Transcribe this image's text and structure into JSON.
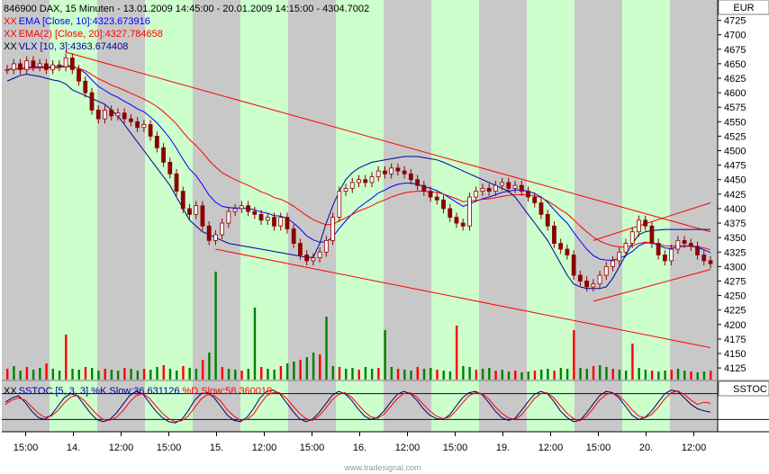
{
  "header": {
    "line1": "846900  DAX, 15 Minuten - 13.01.2009 14:45:00 - 20.01.2009 14:15:00 - 4304.7002",
    "line2": "EMA [Close, 10]:4323.673916",
    "line3": "EMA(2) [Close, 20]:4327.784658",
    "line4": "VLX [10, 3]:4363.674408",
    "currency": "EUR"
  },
  "lower_panel": {
    "legend_prefix": "SSTOC [5, 3, 3] %K Slow:36.631126",
    "legend_d": " %D Slow:58.360019",
    "label": "SSTOC"
  },
  "watermark": "www.tradesignal.com",
  "colors": {
    "gray_band": "#c8c8c8",
    "green_band": "#ccffcc",
    "candle": "#8b0000",
    "ema10": "#0000ff",
    "ema20": "#ff0000",
    "vlx": "#000099",
    "channel": "#ff0000",
    "volume_up": "#008000",
    "volume_down": "#ff0000",
    "stoch_k": "#000066",
    "stoch_d": "#ff0000",
    "stoch_ref": "#000080"
  },
  "chart_data": [
    {
      "type": "line",
      "title": "846900 DAX, 15 Minuten",
      "y_range": [
        4105,
        4760
      ],
      "y_ticks": [
        4725,
        4700,
        4675,
        4650,
        4625,
        4600,
        4575,
        4550,
        4525,
        4500,
        4475,
        4450,
        4425,
        4400,
        4375,
        4350,
        4325,
        4300,
        4275,
        4250,
        4225,
        4200,
        4175,
        4150,
        4125
      ],
      "x_tick_labels": [
        "15:00",
        "14.",
        "12:00",
        "15:00",
        "15.",
        "12:00",
        "15:00",
        "16.",
        "12:00",
        "15:00",
        "19.",
        "12:00",
        "15:00",
        "20.",
        "12:00"
      ],
      "bands": [
        "gray",
        "green",
        "gray",
        "green",
        "gray",
        "green",
        "gray",
        "green",
        "gray",
        "green",
        "gray",
        "green",
        "gray",
        "green",
        "gray"
      ],
      "series": [
        {
          "name": "DAX Close",
          "values": [
            4640,
            4650,
            4640,
            4655,
            4645,
            4650,
            4640,
            4648,
            4645,
            4660,
            4640,
            4620,
            4600,
            4570,
            4555,
            4570,
            4560,
            4565,
            4555,
            4550,
            4540,
            4545,
            4525,
            4505,
            4480,
            4460,
            4430,
            4400,
            4390,
            4405,
            4370,
            4345,
            4355,
            4375,
            4395,
            4400,
            4405,
            4395,
            4390,
            4380,
            4385,
            4370,
            4385,
            4365,
            4340,
            4320,
            4310,
            4315,
            4325,
            4345,
            4385,
            4430,
            4435,
            4445,
            4450,
            4445,
            4455,
            4465,
            4460,
            4470,
            4465,
            4460,
            4450,
            4440,
            4430,
            4420,
            4415,
            4400,
            4385,
            4375,
            4370,
            4420,
            4430,
            4435,
            4430,
            4440,
            4445,
            4435,
            4440,
            4430,
            4420,
            4410,
            4390,
            4370,
            4340,
            4330,
            4320,
            4285,
            4275,
            4265,
            4270,
            4285,
            4300,
            4310,
            4325,
            4340,
            4360,
            4380,
            4370,
            4340,
            4320,
            4310,
            4330,
            4345,
            4340,
            4335,
            4320,
            4310,
            4305
          ]
        },
        {
          "name": "EMA [Close, 10]",
          "values": [
            4640,
            4642,
            4641,
            4644,
            4644,
            4645,
            4644,
            4645,
            4645,
            4647,
            4646,
            4641,
            4634,
            4622,
            4611,
            4604,
            4597,
            4592,
            4585,
            4579,
            4572,
            4567,
            4558,
            4548,
            4535,
            4521,
            4504,
            4485,
            4468,
            4457,
            4441,
            4423,
            4411,
            4404,
            4402,
            4401,
            4401,
            4400,
            4398,
            4394,
            4392,
            4388,
            4387,
            4383,
            4375,
            4365,
            4353,
            4346,
            4342,
            4343,
            4351,
            4366,
            4379,
            4391,
            4402,
            4410,
            4418,
            4427,
            4432,
            4438,
            4442,
            4444,
            4444,
            4442,
            4438,
            4435,
            4431,
            4425,
            4418,
            4411,
            4404,
            4408,
            4413,
            4417,
            4420,
            4424,
            4428,
            4430,
            4432,
            4432,
            4430,
            4426,
            4420,
            4411,
            4398,
            4386,
            4375,
            4359,
            4344,
            4330,
            4319,
            4313,
            4311,
            4311,
            4314,
            4319,
            4326,
            4336,
            4341,
            4341,
            4337,
            4332,
            4331,
            4334,
            4335,
            4335,
            4333,
            4329,
            4324
          ]
        },
        {
          "name": "EMA(2) [Close, 20]",
          "values": [
            4640,
            4641,
            4641,
            4642,
            4642,
            4643,
            4643,
            4643,
            4643,
            4645,
            4644,
            4642,
            4638,
            4631,
            4624,
            4619,
            4613,
            4609,
            4604,
            4599,
            4594,
            4589,
            4583,
            4576,
            4567,
            4557,
            4546,
            4532,
            4519,
            4509,
            4497,
            4483,
            4472,
            4462,
            4456,
            4450,
            4445,
            4440,
            4435,
            4429,
            4425,
            4419,
            4416,
            4411,
            4404,
            4396,
            4388,
            4381,
            4376,
            4372,
            4373,
            4379,
            4384,
            4390,
            4396,
            4400,
            4405,
            4411,
            4415,
            4420,
            4424,
            4427,
            4429,
            4430,
            4430,
            4429,
            4428,
            4425,
            4421,
            4417,
            4412,
            4413,
            4414,
            4416,
            4417,
            4419,
            4421,
            4423,
            4424,
            4424,
            4424,
            4422,
            4419,
            4413,
            4406,
            4398,
            4391,
            4381,
            4370,
            4360,
            4351,
            4344,
            4339,
            4336,
            4334,
            4334,
            4336,
            4340,
            4342,
            4341,
            4339,
            4336,
            4335,
            4336,
            4336,
            4336,
            4334,
            4332,
            4329
          ]
        },
        {
          "name": "VLX [10, 3]",
          "values": [
            4620,
            4625,
            4630,
            4632,
            4630,
            4628,
            4625,
            4622,
            4620,
            4615,
            4605,
            4600,
            4595,
            4590,
            4585,
            4580,
            4570,
            4560,
            4545,
            4530,
            4515,
            4500,
            4485,
            4470,
            4455,
            4440,
            4420,
            4400,
            4380,
            4370,
            4360,
            4355,
            4350,
            4345,
            4340,
            4338,
            4336,
            4334,
            4332,
            4330,
            4328,
            4326,
            4324,
            4322,
            4320,
            4318,
            4316,
            4316,
            4340,
            4375,
            4405,
            4430,
            4450,
            4462,
            4470,
            4475,
            4480,
            4482,
            4484,
            4486,
            4488,
            4490,
            4490,
            4490,
            4488,
            4486,
            4484,
            4480,
            4475,
            4470,
            4465,
            4460,
            4455,
            4450,
            4445,
            4440,
            4435,
            4430,
            4420,
            4405,
            4390,
            4375,
            4360,
            4345,
            4325,
            4305,
            4285,
            4270,
            4265,
            4262,
            4262,
            4262,
            4265,
            4280,
            4300,
            4320,
            4340,
            4355,
            4360,
            4362,
            4363,
            4364,
            4364,
            4364,
            4364,
            4364,
            4364,
            4364,
            4364
          ]
        }
      ],
      "volume": [
        12,
        15,
        10,
        14,
        11,
        13,
        18,
        12,
        10,
        9,
        12,
        11,
        14,
        13,
        10,
        12,
        11,
        10,
        13,
        12,
        10,
        12,
        11,
        14,
        16,
        12,
        10,
        15,
        13,
        12,
        22,
        30,
        18,
        14,
        12,
        11,
        10,
        12,
        13,
        14,
        12,
        11,
        15,
        18,
        20,
        22,
        25,
        30,
        28,
        20,
        15,
        14,
        12,
        13,
        11,
        14,
        12,
        13,
        15,
        14,
        12,
        11,
        10,
        14,
        12,
        13,
        11,
        10,
        9,
        18,
        15,
        14,
        11,
        12,
        13,
        10,
        11,
        9,
        10,
        8,
        9,
        10,
        11,
        12,
        10,
        13,
        12,
        14,
        13,
        12,
        15,
        16,
        14,
        12,
        11,
        10,
        12,
        13,
        11,
        10,
        9,
        10,
        11,
        12,
        10,
        9,
        8,
        9,
        10
      ],
      "volume_spikes": [
        [
          9,
          50
        ],
        [
          32,
          120
        ],
        [
          38,
          80
        ],
        [
          49,
          70
        ],
        [
          58,
          55
        ],
        [
          69,
          60
        ],
        [
          87,
          55
        ],
        [
          96,
          40
        ]
      ],
      "channel_lines": [
        {
          "from": [
            9,
            4670
          ],
          "to": [
            108,
            4360
          ]
        },
        {
          "from": [
            32,
            4330
          ],
          "to": [
            108,
            4160
          ]
        },
        {
          "from": [
            90,
            4345
          ],
          "to": [
            108,
            4410
          ]
        },
        {
          "from": [
            90,
            4240
          ],
          "to": [
            108,
            4295
          ]
        }
      ]
    },
    {
      "type": "line",
      "title": "SSTOC [5, 3, 3]",
      "y_range": [
        0,
        100
      ],
      "ref_lines": [
        80,
        20
      ],
      "series": [
        {
          "name": "%K Slow",
          "values": [
            60,
            70,
            75,
            60,
            40,
            25,
            20,
            30,
            50,
            70,
            80,
            75,
            55,
            35,
            20,
            15,
            20,
            35,
            55,
            75,
            85,
            80,
            60,
            40,
            25,
            15,
            12,
            20,
            40,
            65,
            80,
            82,
            70,
            50,
            30,
            18,
            15,
            25,
            45,
            70,
            85,
            88,
            80,
            60,
            40,
            22,
            15,
            20,
            35,
            55,
            75,
            85,
            80,
            65,
            45,
            28,
            20,
            25,
            40,
            60,
            78,
            85,
            80,
            65,
            45,
            30,
            22,
            20,
            30,
            50,
            70,
            82,
            85,
            78,
            60,
            40,
            25,
            18,
            22,
            40,
            60,
            78,
            85,
            80,
            62,
            40,
            25,
            15,
            18,
            35,
            55,
            75,
            85,
            82,
            70,
            50,
            30,
            20,
            25,
            40,
            60,
            80,
            88,
            85,
            70,
            55,
            45,
            40,
            37
          ]
        },
        {
          "name": "%D Slow",
          "values": [
            55,
            65,
            70,
            65,
            50,
            35,
            25,
            28,
            40,
            58,
            72,
            76,
            65,
            48,
            32,
            20,
            18,
            25,
            40,
            60,
            75,
            80,
            70,
            52,
            35,
            22,
            15,
            17,
            28,
            48,
            68,
            78,
            75,
            62,
            42,
            28,
            18,
            20,
            32,
            55,
            75,
            82,
            82,
            70,
            52,
            35,
            22,
            18,
            28,
            45,
            65,
            78,
            82,
            72,
            55,
            38,
            26,
            23,
            32,
            50,
            68,
            80,
            82,
            72,
            55,
            40,
            28,
            22,
            25,
            40,
            58,
            75,
            82,
            80,
            68,
            50,
            35,
            24,
            20,
            30,
            48,
            68,
            80,
            82,
            70,
            52,
            35,
            22,
            17,
            27,
            45,
            65,
            78,
            82,
            75,
            60,
            42,
            28,
            24,
            32,
            48,
            68,
            82,
            86,
            78,
            65,
            55,
            60,
            58
          ]
        }
      ]
    }
  ]
}
